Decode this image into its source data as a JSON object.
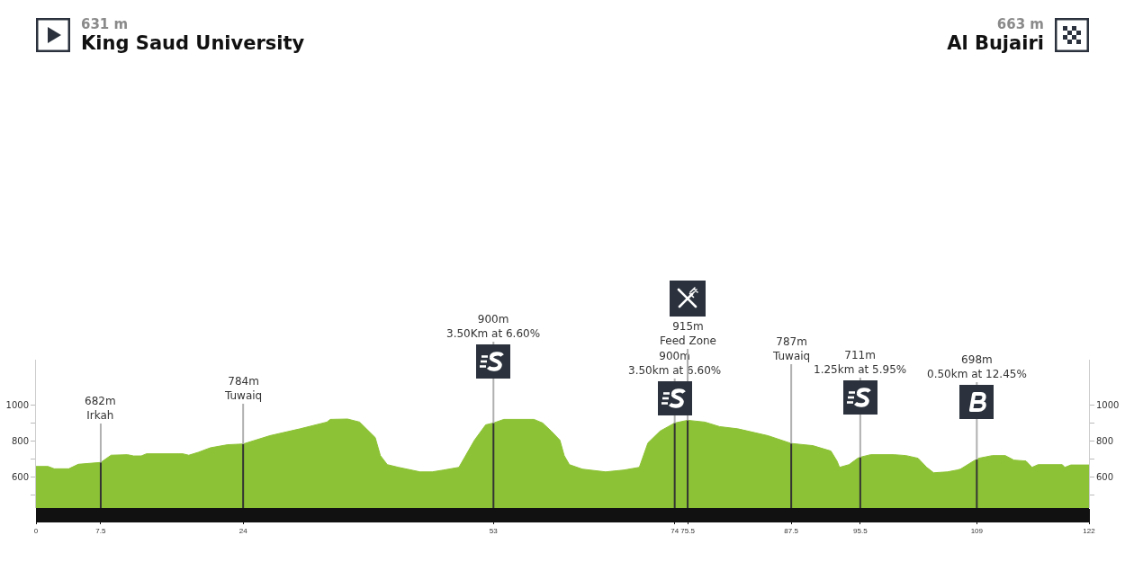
{
  "chart_data": {
    "type": "area",
    "series": [
      {
        "x": [
          0,
          1.4,
          2.1,
          3.8,
          4.9,
          7.5,
          8.7,
          10.6,
          11.3,
          12.2,
          12.8,
          17,
          17.7,
          18.8,
          20.2,
          22.2,
          24,
          27.1,
          30.6,
          33.7,
          34.1,
          36.1,
          37.5,
          39.3,
          39.9,
          40.7,
          42,
          44.5,
          45.9,
          47.2,
          49,
          50.8,
          52.1,
          53,
          54.2,
          57.7,
          58.7,
          59.7,
          60.7,
          61.2,
          61.8,
          63.3,
          66,
          68.1,
          69.9,
          70.9,
          72.3,
          74,
          75.5,
          77.5,
          79.2,
          81.3,
          84.8,
          87.5,
          90,
          92.1,
          92.8,
          93.1,
          94.2,
          95.2,
          95.5,
          96.7,
          99.4,
          100.8,
          102.2,
          103.2,
          104,
          105.6,
          106.7,
          107.1,
          108.8,
          109,
          109.2,
          110.8,
          112.3,
          113.3,
          114.7,
          115.4,
          116.1,
          118.9,
          119.2,
          119.9,
          122
        ],
        "values": [
          660,
          660,
          647,
          647,
          672,
          682,
          722,
          725,
          718,
          718,
          730,
          730,
          722,
          738,
          763,
          780,
          784,
          830,
          868,
          905,
          920,
          922,
          905,
          820,
          720,
          670,
          655,
          630,
          630,
          640,
          655,
          805,
          890,
          900,
          920,
          920,
          900,
          855,
          805,
          720,
          670,
          645,
          630,
          640,
          655,
          790,
          855,
          900,
          915,
          905,
          880,
          868,
          830,
          787,
          775,
          745,
          690,
          655,
          670,
          705,
          711,
          725,
          725,
          720,
          705,
          655,
          625,
          630,
          640,
          645,
          695,
          698,
          705,
          720,
          720,
          695,
          690,
          655,
          670,
          670,
          655,
          668,
          668
        ],
        "color": "#8cc235"
      },
      {
        "type": "bar",
        "axis": "y2",
        "x": [
          7.5,
          24,
          53,
          74,
          75.5,
          87.5,
          95.5,
          109
        ],
        "values": [
          682,
          784,
          900,
          900,
          915,
          787,
          711,
          698
        ],
        "color": "#333333"
      }
    ],
    "xlim": [
      0,
      122
    ],
    "xticks": [
      0,
      7.5,
      24,
      53,
      74,
      75.5,
      87.5,
      95.5,
      109,
      122
    ],
    "ylim": [
      430,
      1250
    ],
    "yticks": [
      {
        "value": 500,
        "label": null
      },
      600,
      {
        "value": 700,
        "label": null
      },
      800,
      {
        "value": 900,
        "label": null
      },
      1000
    ],
    "y2lim": [
      430,
      1250
    ],
    "y2ticks": [
      {
        "value": 500,
        "label": null
      },
      600,
      {
        "value": 700,
        "label": null
      },
      800,
      {
        "value": 900,
        "label": null
      },
      1000
    ],
    "annotations": [
      "631 m\nKing Saud University",
      "663 m\nAl Bujairi",
      {
        "text": "682m\nIrkah",
        "x": 7.5,
        "y": 682
      },
      {
        "text": "784m\nTuwaiq",
        "x": 24,
        "y": 784
      },
      {
        "text": "900m\n3.50Km at 6.60%",
        "x": 53,
        "y": 900
      },
      {
        "text": "900m\n3.50km at 6.60%",
        "x": 74,
        "y": 900
      },
      {
        "text": "915m\nFeed Zone",
        "x": 75.5,
        "y": 915
      },
      {
        "text": "787m\nTuwaiq",
        "x": 87.5,
        "y": 787
      },
      {
        "text": "711m\n1.25km at 5.95%",
        "x": 95.5,
        "y": 711
      },
      {
        "text": "698m\n0.50km at 12.45%",
        "x": 109,
        "y": 698
      }
    ]
  }
}
